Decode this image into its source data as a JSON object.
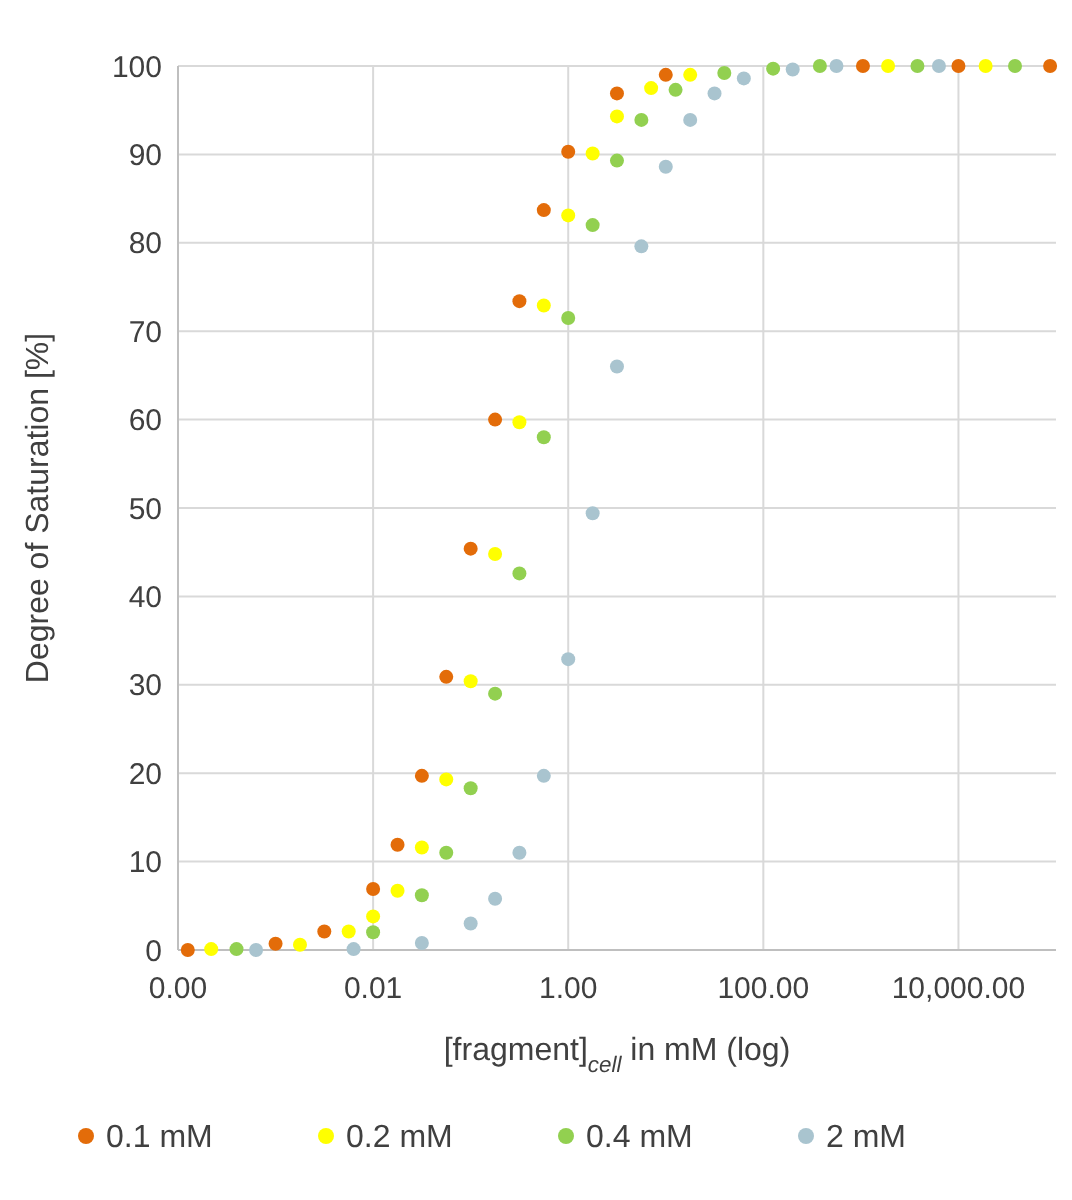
{
  "chart_data": {
    "type": "scatter",
    "xlabel": "[fragment]$_{cell}$ in mM (log)",
    "ylabel": "Degree of Saturation [%]",
    "log": "x",
    "grid": true,
    "legend": "bottom",
    "marker": "circle",
    "xlim": [
      0.0001,
      100000
    ],
    "xticks": [
      {
        "value": 0.0001,
        "label": "0.00"
      },
      {
        "value": 0.01,
        "label": "0.01"
      },
      {
        "value": 1,
        "label": "1.00"
      },
      {
        "value": 100,
        "label": "100.00"
      },
      {
        "value": 10000,
        "label": "10,000.00"
      }
    ],
    "ylim": [
      0,
      100
    ],
    "yticks": [
      0,
      10,
      20,
      30,
      40,
      50,
      60,
      70,
      80,
      90,
      100
    ],
    "series": [
      {
        "name": "0.1 mM",
        "color": "#e36c09",
        "x": [
          0.000126,
          0.001,
          0.00316,
          0.01,
          0.0178,
          0.0316,
          0.0562,
          0.1,
          0.178,
          0.316,
          0.562,
          1,
          3.16,
          10,
          1050,
          10000,
          87000
        ],
        "values": [
          0,
          0.7,
          2.1,
          6.9,
          11.9,
          19.7,
          30.9,
          45.4,
          60,
          73.4,
          83.7,
          90.3,
          96.9,
          99,
          100,
          100,
          100
        ]
      },
      {
        "name": "0.2 mM",
        "color": "#ffff00",
        "x": [
          0.000219,
          0.00178,
          0.00562,
          0.01,
          0.0178,
          0.0316,
          0.0562,
          0.1,
          0.178,
          0.316,
          0.562,
          1,
          1.78,
          3.16,
          7.08,
          17.8,
          1900,
          19000
        ],
        "values": [
          0.1,
          0.6,
          2.1,
          3.8,
          6.7,
          11.6,
          19.3,
          30.4,
          44.8,
          59.7,
          72.9,
          83.1,
          90.1,
          94.3,
          97.5,
          99,
          100,
          100
        ]
      },
      {
        "name": "0.4 mM",
        "color": "#92d050",
        "x": [
          0.000398,
          0.01,
          0.0316,
          0.0562,
          0.1,
          0.178,
          0.316,
          0.562,
          1,
          1.78,
          3.16,
          5.62,
          12.6,
          39.8,
          126,
          380,
          3800,
          38000
        ],
        "values": [
          0.1,
          2,
          6.2,
          11,
          18.3,
          29,
          42.6,
          58,
          71.5,
          82,
          89.3,
          93.9,
          97.3,
          99.2,
          99.7,
          100,
          100,
          100
        ]
      },
      {
        "name": "2 mM",
        "color": "#a9c4cf",
        "x": [
          0.000631,
          0.00631,
          0.0316,
          0.1,
          0.178,
          0.316,
          0.562,
          1,
          1.78,
          3.16,
          5.62,
          10,
          17.8,
          31.6,
          63.1,
          200,
          562,
          6310
        ],
        "values": [
          0,
          0.1,
          0.8,
          3,
          5.8,
          11,
          19.7,
          32.9,
          49.4,
          66,
          79.6,
          88.6,
          93.9,
          96.9,
          98.6,
          99.6,
          100,
          100
        ]
      }
    ]
  }
}
